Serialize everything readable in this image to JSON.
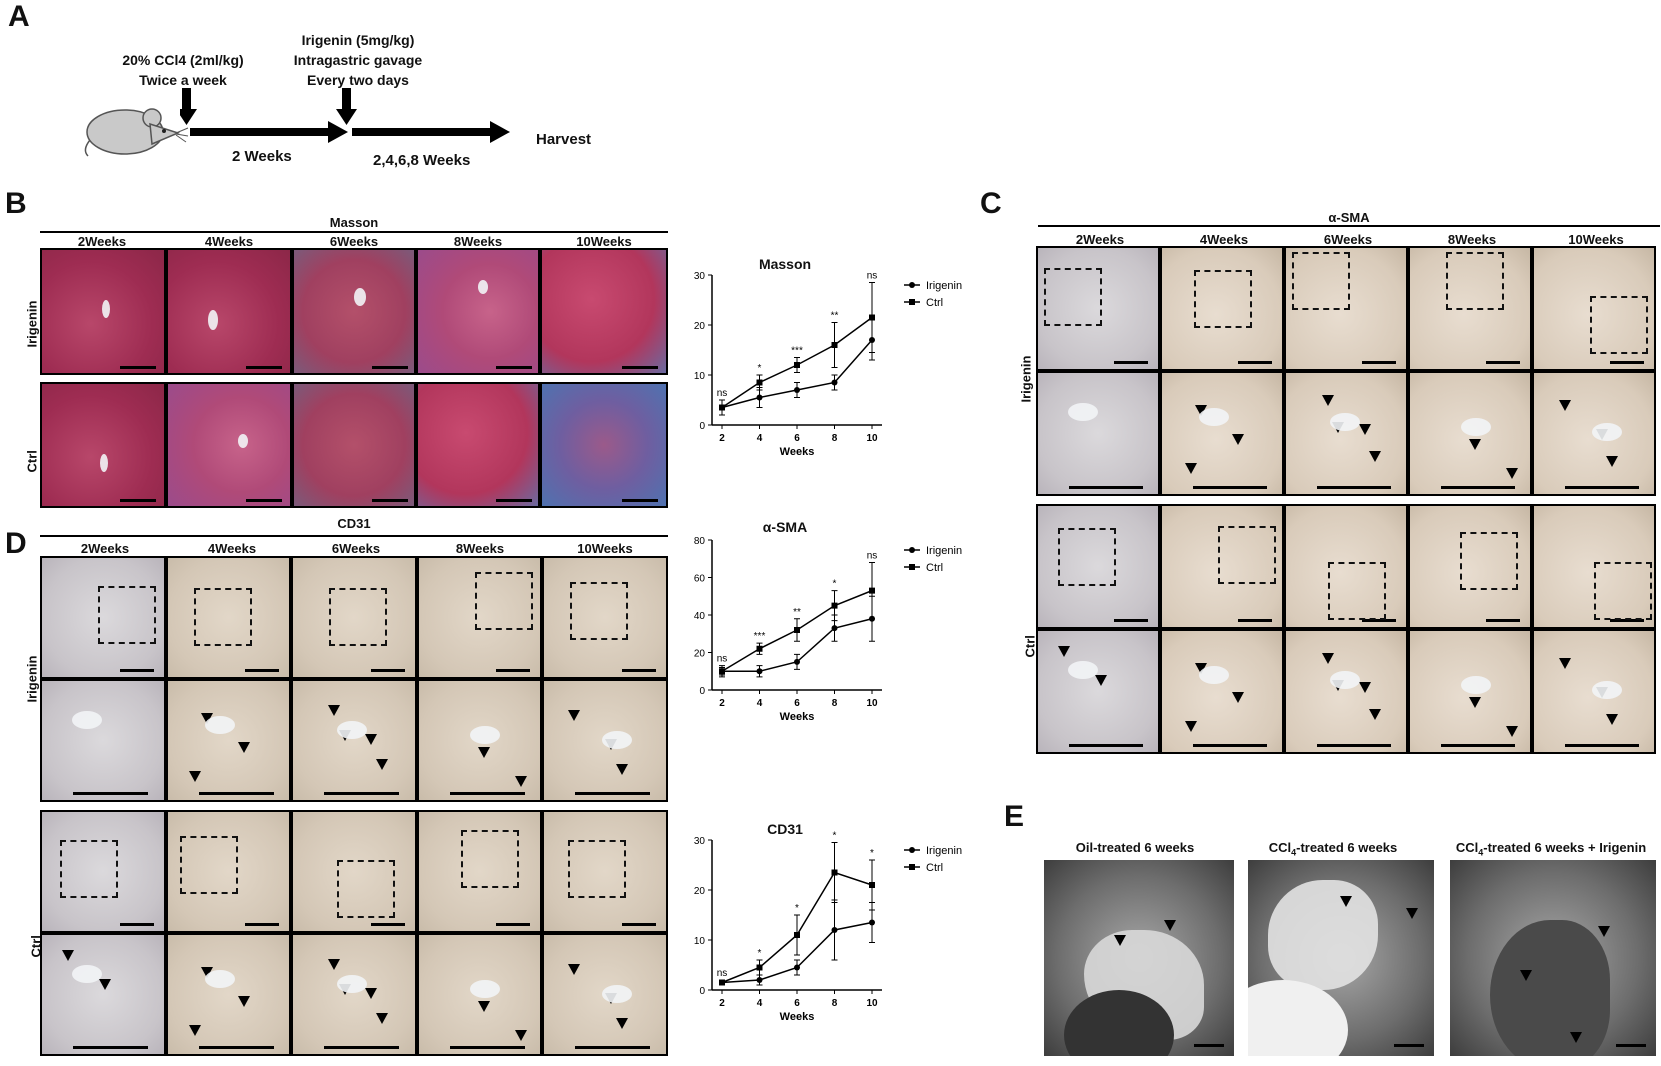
{
  "panelA": {
    "letter": "A",
    "ccl4_line1": "20% CCl4 (2ml/kg)",
    "ccl4_line2": "Twice a week",
    "irigenin_line1": "Irigenin (5mg/kg)",
    "irigenin_line2": "Intragastric gavage",
    "irigenin_line3": "Every two days",
    "period1": "2 Weeks",
    "period2": "2,4,6,8 Weeks",
    "harvest": "Harvest"
  },
  "panelB": {
    "letter": "B",
    "stain": "Masson",
    "columns": [
      "2Weeks",
      "4Weeks",
      "6Weeks",
      "8Weeks",
      "10Weeks"
    ],
    "row1": "Irigenin",
    "row2": "Ctrl"
  },
  "panelC": {
    "letter": "C",
    "stain": "α-SMA",
    "columns": [
      "2Weeks",
      "4Weeks",
      "6Weeks",
      "8Weeks",
      "10Weeks"
    ],
    "row1": "Irigenin",
    "row2": "Ctrl"
  },
  "panelD": {
    "letter": "D",
    "stain": "CD31",
    "columns": [
      "2Weeks",
      "4Weeks",
      "6Weeks",
      "8Weeks",
      "10Weeks"
    ],
    "row1": "Irigenin",
    "row2": "Ctrl"
  },
  "panelE": {
    "letter": "E",
    "label1": "Oil-treated 6 weeks",
    "label2_pre": "CCl",
    "label2_sub": "4",
    "label2_post": "-treated 6 weeks",
    "label3_pre": "CCl",
    "label3_sub": "4",
    "label3_post": "-treated 6 weeks + Irigenin"
  },
  "chart_data": [
    {
      "type": "line",
      "title": "Masson",
      "xlabel": "Weeks",
      "ylabel": "",
      "x": [
        2,
        4,
        6,
        8,
        10
      ],
      "xticks": [
        "2",
        "4",
        "6",
        "8",
        "10"
      ],
      "ylim": [
        0,
        30
      ],
      "yticks": [
        "0",
        "10",
        "20",
        "30"
      ],
      "legend": "right",
      "series": [
        {
          "name": "Irigenin",
          "marker": "circle",
          "values": [
            3.5,
            5.5,
            7,
            8.5,
            17
          ],
          "err": [
            1.5,
            2,
            1.5,
            1.5,
            4
          ]
        },
        {
          "name": "Ctrl",
          "marker": "square",
          "values": [
            3.5,
            8.5,
            12,
            16,
            21.5
          ],
          "err": [
            1.5,
            1.5,
            1.5,
            4.5,
            7
          ]
        }
      ],
      "significance": [
        "ns",
        "*",
        "***",
        "**",
        "ns"
      ]
    },
    {
      "type": "line",
      "title": "α-SMA",
      "xlabel": "Weeks",
      "ylabel": "",
      "x": [
        2,
        4,
        6,
        8,
        10
      ],
      "xticks": [
        "2",
        "4",
        "6",
        "8",
        "10"
      ],
      "ylim": [
        0,
        80
      ],
      "yticks": [
        "0",
        "20",
        "40",
        "60",
        "80"
      ],
      "legend": "right",
      "series": [
        {
          "name": "Irigenin",
          "marker": "circle",
          "values": [
            10,
            10,
            15,
            33,
            38
          ],
          "err": [
            2,
            3,
            4,
            7,
            12
          ]
        },
        {
          "name": "Ctrl",
          "marker": "square",
          "values": [
            10,
            22,
            32,
            45,
            53
          ],
          "err": [
            3,
            3,
            6,
            8,
            15
          ]
        }
      ],
      "significance": [
        "ns",
        "***",
        "**",
        "*",
        "ns"
      ]
    },
    {
      "type": "line",
      "title": "CD31",
      "xlabel": "Weeks",
      "ylabel": "",
      "x": [
        2,
        4,
        6,
        8,
        10
      ],
      "xticks": [
        "2",
        "4",
        "6",
        "8",
        "10"
      ],
      "ylim": [
        0,
        30
      ],
      "yticks": [
        "0",
        "10",
        "20",
        "30"
      ],
      "legend": "right",
      "series": [
        {
          "name": "Irigenin",
          "marker": "circle",
          "values": [
            1.5,
            2,
            4.5,
            12,
            13.5
          ],
          "err": [
            0.5,
            1,
            1.5,
            6,
            4
          ]
        },
        {
          "name": "Ctrl",
          "marker": "square",
          "values": [
            1.5,
            4.5,
            11,
            23.5,
            21
          ],
          "err": [
            0.5,
            1.5,
            4,
            6,
            5
          ]
        }
      ],
      "significance": [
        "ns",
        "*",
        "*",
        "*",
        "*"
      ]
    }
  ]
}
